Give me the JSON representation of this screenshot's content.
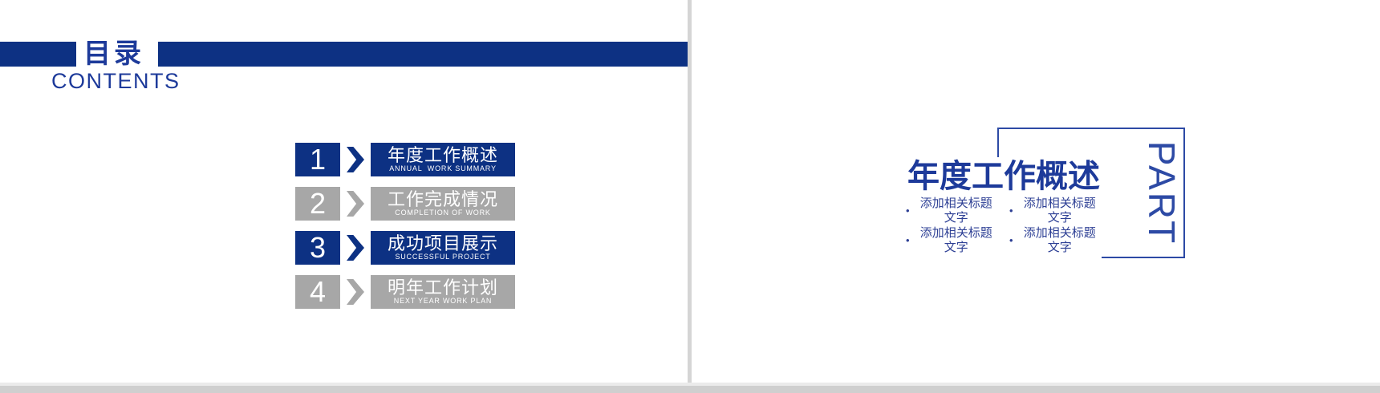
{
  "colors": {
    "primary_blue": "#0d3183",
    "bar_gray": "#a7a7a7",
    "text_blue": "#1d3a9a",
    "accent_blue": "#2d4aa5",
    "bullet_blue": "#2e4095",
    "seam_gray": "#d5d5d5",
    "band_gray": "#cfcfcf"
  },
  "toc_slide": {
    "title_cn": "目录",
    "title_en": "CONTENTS",
    "items": [
      {
        "num": "1",
        "title": "年度工作概述",
        "subtitle": "ANNUAL  WORK SUMMARY"
      },
      {
        "num": "2",
        "title": "工作完成情况",
        "subtitle": "COMPLETION OF WORK"
      },
      {
        "num": "3",
        "title": "成功项目展示",
        "subtitle": "SUCCESSFUL PROJECT"
      },
      {
        "num": "4",
        "title": "明年工作计划",
        "subtitle": "NEXT YEAR WORK PLAN"
      }
    ]
  },
  "part_slide": {
    "part_label": "PART",
    "title": "年度工作概述",
    "bullet_char": "•",
    "bullets": [
      "添加相关标题文字",
      "添加相关标题文字",
      "添加相关标题文字",
      "添加相关标题文字"
    ]
  }
}
